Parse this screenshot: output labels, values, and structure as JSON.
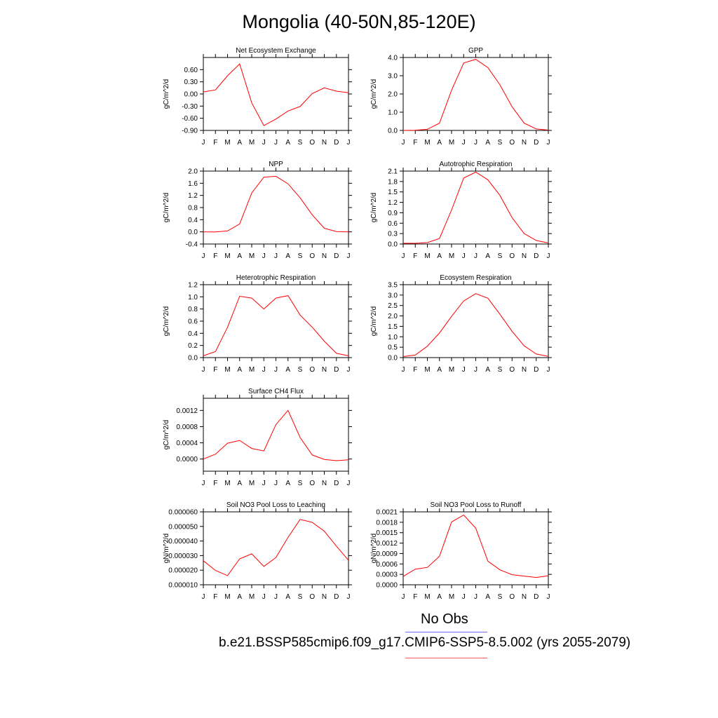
{
  "page": {
    "title": "Mongolia (40-50N,85-120E)",
    "legend": {
      "obs_label": "No Obs",
      "obs_color": "#6b6bff",
      "case_label": "b.e21.BSSP585cmip6.f09_g17.CMIP6-SSP5-8.5.002 (yrs 2055-2079)",
      "case_color": "#ff0000"
    }
  },
  "chart_data": [
    {
      "type": "line",
      "title": "Net Ecosystem Exchange",
      "ylabel": "gC/m^2/d",
      "categories": [
        "J",
        "F",
        "M",
        "A",
        "M",
        "J",
        "J",
        "A",
        "S",
        "O",
        "N",
        "D",
        "J"
      ],
      "ylim": [
        -0.9,
        0.9
      ],
      "yticks": [
        "0.60",
        "0.30",
        "0.00",
        "-0.30",
        "-0.60",
        "-0.90"
      ],
      "values": [
        0.05,
        0.1,
        0.45,
        0.74,
        -0.22,
        -0.78,
        -0.62,
        -0.42,
        -0.31,
        0.01,
        0.15,
        0.07,
        0.03
      ]
    },
    {
      "type": "line",
      "title": "GPP",
      "ylabel": "gC/m^2/d",
      "categories": [
        "J",
        "F",
        "M",
        "A",
        "M",
        "J",
        "J",
        "A",
        "S",
        "O",
        "N",
        "D",
        "J"
      ],
      "ylim": [
        0,
        4
      ],
      "yticks": [
        "4.0",
        "3.0",
        "2.0",
        "1.0",
        "0.0"
      ],
      "values": [
        0.0,
        0.01,
        0.06,
        0.4,
        2.2,
        3.7,
        3.9,
        3.45,
        2.5,
        1.3,
        0.4,
        0.08,
        0.02
      ]
    },
    {
      "type": "line",
      "title": "NPP",
      "ylabel": "gC/m^2/d",
      "categories": [
        "J",
        "F",
        "M",
        "A",
        "M",
        "J",
        "J",
        "A",
        "S",
        "O",
        "N",
        "D",
        "J"
      ],
      "ylim": [
        -0.4,
        2.0
      ],
      "yticks": [
        "2.0",
        "1.6",
        "1.2",
        "0.8",
        "0.4",
        "0.0",
        "-0.4"
      ],
      "values": [
        0.0,
        0.0,
        0.03,
        0.26,
        1.28,
        1.8,
        1.83,
        1.58,
        1.12,
        0.56,
        0.12,
        0.01,
        0.0
      ]
    },
    {
      "type": "line",
      "title": "Autotrophic Respiration",
      "ylabel": "gC/m^2/d",
      "categories": [
        "J",
        "F",
        "M",
        "A",
        "M",
        "J",
        "J",
        "A",
        "S",
        "O",
        "N",
        "D",
        "J"
      ],
      "ylim": [
        0,
        2.1
      ],
      "yticks": [
        "2.1",
        "1.8",
        "1.5",
        "1.2",
        "0.9",
        "0.6",
        "0.3",
        "0.0"
      ],
      "values": [
        0.02,
        0.02,
        0.04,
        0.16,
        0.98,
        1.9,
        2.07,
        1.85,
        1.4,
        0.76,
        0.3,
        0.1,
        0.03
      ]
    },
    {
      "type": "line",
      "title": "Heterotrophic Respiration",
      "ylabel": "gC/m^2/d",
      "categories": [
        "J",
        "F",
        "M",
        "A",
        "M",
        "J",
        "J",
        "A",
        "S",
        "O",
        "N",
        "D",
        "J"
      ],
      "ylim": [
        0,
        1.2
      ],
      "yticks": [
        "1.2",
        "1.0",
        "0.8",
        "0.6",
        "0.4",
        "0.2",
        "0.0"
      ],
      "values": [
        0.03,
        0.1,
        0.5,
        1.01,
        0.98,
        0.8,
        0.98,
        1.02,
        0.7,
        0.5,
        0.27,
        0.07,
        0.03
      ]
    },
    {
      "type": "line",
      "title": "Ecosystem Respiration",
      "ylabel": "gC/m^2/d",
      "categories": [
        "J",
        "F",
        "M",
        "A",
        "M",
        "J",
        "J",
        "A",
        "S",
        "O",
        "N",
        "D",
        "J"
      ],
      "ylim": [
        0,
        3.5
      ],
      "yticks": [
        "3.5",
        "3.0",
        "2.5",
        "2.0",
        "1.5",
        "1.0",
        "0.5",
        "0.0"
      ],
      "values": [
        0.05,
        0.12,
        0.55,
        1.18,
        1.98,
        2.72,
        3.07,
        2.85,
        2.08,
        1.26,
        0.57,
        0.17,
        0.06
      ]
    },
    {
      "type": "line",
      "title": "Surface CH4 Flux",
      "ylabel": "gC/m^2/d",
      "categories": [
        "J",
        "F",
        "M",
        "A",
        "M",
        "J",
        "J",
        "A",
        "S",
        "O",
        "N",
        "D",
        "J"
      ],
      "ylim": [
        -0.0003,
        0.0015
      ],
      "yticks": [
        "0.0012",
        "0.0008",
        "0.0004",
        "0.0000"
      ],
      "yticks_values": [
        0.0012,
        0.0008,
        0.0004,
        0.0
      ],
      "values": [
        0.0,
        0.00012,
        0.00039,
        0.00046,
        0.00026,
        0.0002,
        0.00085,
        0.0012,
        0.00053,
        0.0001,
        -1e-05,
        -4e-05,
        -2e-05
      ]
    },
    {
      "type": "line",
      "title": "Soil NO3 Pool Loss to Leaching",
      "ylabel": "gN/m^2/d",
      "categories": [
        "J",
        "F",
        "M",
        "A",
        "M",
        "J",
        "J",
        "A",
        "S",
        "O",
        "N",
        "D",
        "J"
      ],
      "ylim": [
        1e-05,
        6e-05
      ],
      "yticks": [
        "0.000060",
        "0.000050",
        "0.000040",
        "0.000030",
        "0.000020",
        "0.000010"
      ],
      "values": [
        2.65e-05,
        1.98e-05,
        1.63e-05,
        2.78e-05,
        3.12e-05,
        2.26e-05,
        2.87e-05,
        4.25e-05,
        5.48e-05,
        5.28e-05,
        4.68e-05,
        3.65e-05,
        2.68e-05
      ]
    },
    {
      "type": "line",
      "title": "Soil NO3 Pool Loss to Runoff",
      "ylabel": "gN/m^2/d",
      "categories": [
        "J",
        "F",
        "M",
        "A",
        "M",
        "J",
        "J",
        "A",
        "S",
        "O",
        "N",
        "D",
        "J"
      ],
      "ylim": [
        0,
        0.0021
      ],
      "yticks": [
        "0.0021",
        "0.0018",
        "0.0015",
        "0.0012",
        "0.0009",
        "0.0006",
        "0.0003",
        "0.0000"
      ],
      "values": [
        0.00024,
        0.00045,
        0.0005,
        0.00082,
        0.00181,
        0.00201,
        0.00163,
        0.00068,
        0.00043,
        0.00029,
        0.00025,
        0.00021,
        0.00026
      ]
    }
  ]
}
